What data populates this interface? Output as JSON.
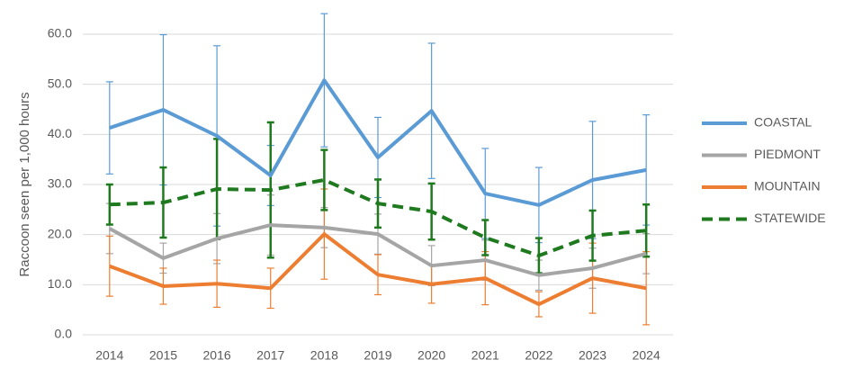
{
  "chart_data": {
    "type": "line",
    "y_label": "Raccoon seen per 1,000 hours",
    "categories": [
      "2014",
      "2015",
      "2016",
      "2017",
      "2018",
      "2019",
      "2020",
      "2021",
      "2022",
      "2023",
      "2024"
    ],
    "ylim": [
      0,
      60
    ],
    "yticks": [
      {
        "value": 0,
        "label": "0.0"
      },
      {
        "value": 10,
        "label": "10.0"
      },
      {
        "value": 20,
        "label": "20.0"
      },
      {
        "value": 30,
        "label": "30.0"
      },
      {
        "value": 40,
        "label": "40.0"
      },
      {
        "value": 50,
        "label": "50.0"
      },
      {
        "value": 60,
        "label": "60.0"
      }
    ],
    "grid": true,
    "legend": "right",
    "series": [
      {
        "name": "COASTAL",
        "color": "#5b9bd5",
        "dash": false,
        "values": [
          41.3,
          44.9,
          39.7,
          31.8,
          50.8,
          35.4,
          44.7,
          28.2,
          25.9,
          30.9,
          32.9
        ],
        "errors": [
          9.2,
          15,
          18,
          6,
          13.3,
          8,
          13.5,
          9,
          7.5,
          11.7,
          11
        ]
      },
      {
        "name": "PIEDMONT",
        "color": "#a5a5a5",
        "dash": false,
        "values": [
          21.2,
          15.3,
          19.2,
          21.9,
          21.4,
          20.1,
          13.8,
          14.9,
          11.9,
          13.3,
          16.2
        ],
        "errors": [
          5,
          3,
          5,
          6,
          4,
          4,
          4,
          4,
          3,
          4,
          4
        ]
      },
      {
        "name": "MOUNTAIN",
        "color": "#ed7d31",
        "dash": false,
        "values": [
          13.7,
          9.7,
          10.2,
          9.3,
          20.1,
          12.0,
          10.1,
          11.3,
          6.1,
          11.3,
          9.3
        ],
        "errors": [
          6,
          3.6,
          4.7,
          4,
          9,
          4,
          3.8,
          5.3,
          2.5,
          7,
          7.3
        ]
      },
      {
        "name": "STATEWIDE",
        "color": "#1f7a1f",
        "dash": true,
        "values": [
          26.0,
          26.4,
          29.1,
          28.9,
          30.9,
          26.2,
          24.6,
          19.4,
          15.8,
          19.8,
          20.8
        ],
        "errors": [
          4,
          7,
          10,
          13.5,
          6,
          4.8,
          5.6,
          3.5,
          3.5,
          5,
          5.2
        ]
      }
    ]
  }
}
